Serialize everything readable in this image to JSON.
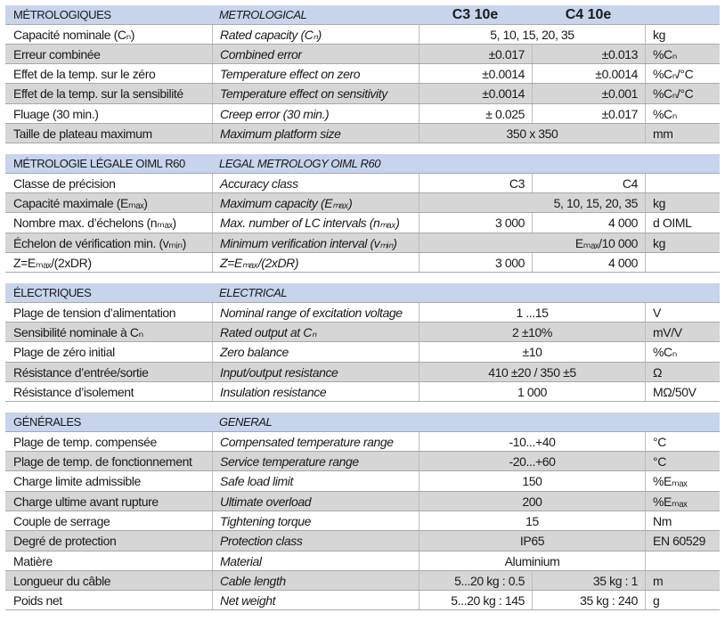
{
  "sections": [
    {
      "fr": "MÉTROLOGIQUES",
      "en": "METROLOGICAL",
      "models": [
        "C3 10e",
        "C4 10e"
      ],
      "rows": [
        {
          "fr": "Capacité nominale (Cₙ)",
          "en": "Rated capacity (Cₙ)",
          "value": "5, 10, 15, 20, 35",
          "unit": "kg"
        },
        {
          "fr": "Erreur combinée",
          "en": "Combined error",
          "c3": "±0.017",
          "c4": "±0.013",
          "unit": "%Cₙ"
        },
        {
          "fr": "Effet de la temp. sur le zéro",
          "en": "Temperature effect on zero",
          "c3": "±0.0014",
          "c4": "±0.0014",
          "unit": "%Cₙ/°C"
        },
        {
          "fr": "Effet de la temp. sur la sensibilité",
          "en": "Temperature effect on sensitivity",
          "c3": "±0.0014",
          "c4": "±0.001",
          "unit": "%Cₙ/°C"
        },
        {
          "fr": "Fluage (30 min.)",
          "en": "Creep error (30 min.)",
          "c3": "± 0.025",
          "c4": "±0.017",
          "unit": "%Cₙ"
        },
        {
          "fr": "Taille de plateau maximum",
          "en": "Maximum platform size",
          "value": "350 x 350",
          "unit": "mm"
        }
      ]
    },
    {
      "fr": "MÉTROLOGIE LÉGALE OIML R60",
      "en": "LEGAL METROLOGY OIML R60",
      "rows": [
        {
          "fr": "Classe de précision",
          "en": "Accuracy class",
          "c3": "C3",
          "c4": "C4",
          "unit": ""
        },
        {
          "fr": "Capacité maximale (Eₘₐₓ)",
          "en": "Maximum capacity (Eₘₐₓ)",
          "c3": "",
          "c4": "5, 10, 15, 20, 35",
          "wide_right": true,
          "unit": "kg"
        },
        {
          "fr": "Nombre max. d’échelons (nₘₐₓ)",
          "en": "Max. number of LC intervals (nₘₐₓ)",
          "c3": "3 000",
          "c4": "4 000",
          "unit": "d OIML"
        },
        {
          "fr": "Échelon de vérification min. (vₘᵢₙ)",
          "en": "Minimum verification interval (vₘᵢₙ)",
          "c3": "",
          "c4": "Eₘₐₓ/10 000",
          "wide_right": true,
          "unit": "kg"
        },
        {
          "fr": "Z=Eₘₐₓ/(2xDR)",
          "en": "Z=Eₘₐₓ/(2xDR)",
          "c3": "3 000",
          "c4": "4 000",
          "unit": ""
        }
      ]
    },
    {
      "fr": "ÉLECTRIQUES",
      "en": "ELECTRICAL",
      "rows": [
        {
          "fr": "Plage de tension d’alimentation",
          "en": "Nominal range of excitation voltage",
          "value": "1 ...15",
          "unit": "V"
        },
        {
          "fr": "Sensibilité nominale à Cₙ",
          "en": "Rated output at Cₙ",
          "value": "2 ±10%",
          "unit": "mV/V"
        },
        {
          "fr": "Plage de zéro initial",
          "en": "Zero balance",
          "value": "±10",
          "unit": "%Cₙ"
        },
        {
          "fr": "Résistance d’entrée/sortie",
          "en": "Input/output resistance",
          "value": "410 ±20 / 350 ±5",
          "unit": "Ω"
        },
        {
          "fr": "Résistance d’isolement",
          "en": "Insulation resistance",
          "value": "1 000",
          "unit": "MΩ/50V"
        }
      ]
    },
    {
      "fr": "GÉNÉRALES",
      "en": "GENERAL",
      "rows": [
        {
          "fr": "Plage de temp. compensée",
          "en": "Compensated temperature range",
          "value": "-10...+40",
          "unit": "°C"
        },
        {
          "fr": "Plage de temp. de fonctionnement",
          "en": "Service temperature range",
          "value": "-20...+60",
          "unit": "°C"
        },
        {
          "fr": "Charge limite admissible",
          "en": "Safe load limit",
          "value": "150",
          "unit": "%Eₘₐₓ"
        },
        {
          "fr": "Charge ultime avant rupture",
          "en": "Ultimate overload",
          "value": "200",
          "unit": "%Eₘₐₓ"
        },
        {
          "fr": "Couple de serrage",
          "en": "Tightening torque",
          "value": "15",
          "unit": "Nm"
        },
        {
          "fr": "Degré de protection",
          "en": "Protection class",
          "value": "IP65",
          "unit": "EN 60529"
        },
        {
          "fr": "Matière",
          "en": "Material",
          "value": "Aluminium",
          "unit": ""
        },
        {
          "fr": "Longueur du câble",
          "en": "Cable length",
          "c3": "5...20 kg : 0.5",
          "c4": "35 kg : 1",
          "unit": "m"
        },
        {
          "fr": "Poids net",
          "en": "Net weight",
          "c3": "5...20 kg : 145",
          "c4": "35 kg : 240",
          "unit": "g"
        }
      ]
    }
  ]
}
